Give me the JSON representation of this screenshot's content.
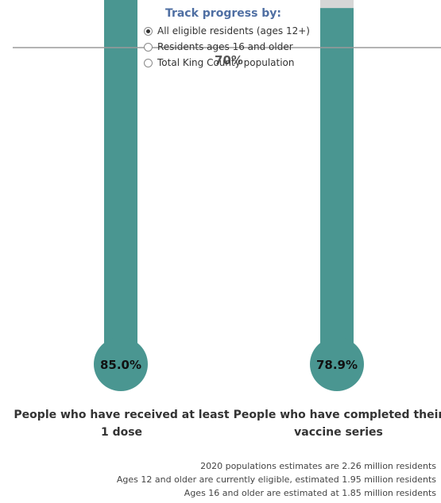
{
  "chart_data": {
    "type": "bar",
    "title": "",
    "categories": [
      "People who have received at least 1 dose",
      "People who have completed their vaccine series"
    ],
    "values": [
      85.0,
      78.9
    ],
    "value_labels": [
      "85.0%",
      "78.9%"
    ],
    "ylim": [
      0,
      100
    ],
    "reference_line": {
      "value": 70,
      "label": "70%"
    },
    "colors": {
      "fill": "#4a9691",
      "track": "#d6d6d6",
      "reference_line": "#9a9a9a"
    }
  },
  "controls": {
    "title": "Track progress by:",
    "options": [
      {
        "label": "All eligible residents (ages 12+)",
        "selected": true
      },
      {
        "label": "Residents ages 16 and older",
        "selected": false
      },
      {
        "label": "Total King County population",
        "selected": false
      }
    ]
  },
  "labels": {
    "bar1": [
      "People who have received at least",
      "1 dose"
    ],
    "bar2": [
      "People who have completed their",
      "vaccine series"
    ]
  },
  "footnotes": [
    "2020 populations estimates are 2.26 million residents",
    "Ages 12 and older are currently eligible, estimated 1.95 million residents",
    "Ages 16 and older are estimated at 1.85 million residents"
  ]
}
